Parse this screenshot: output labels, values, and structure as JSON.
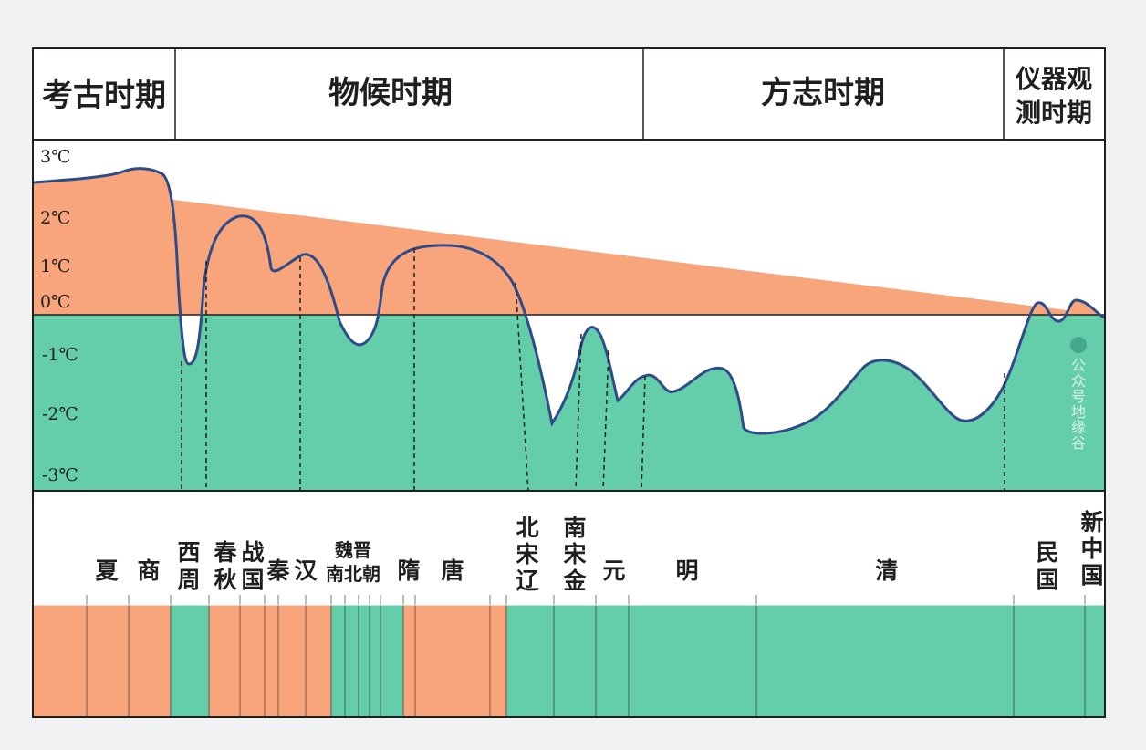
{
  "periods": [
    {
      "label": "考古时期"
    },
    {
      "label": "物候时期"
    },
    {
      "label": "方志时期"
    },
    {
      "label_lines": [
        "仪器观",
        "测时期"
      ]
    }
  ],
  "y_axis": {
    "ticks": [
      "3℃",
      "2℃",
      "1℃",
      "0℃",
      "-1℃",
      "-2℃",
      "-3℃"
    ]
  },
  "dynasties": [
    {
      "lines": [
        "夏"
      ]
    },
    {
      "lines": [
        "商"
      ]
    },
    {
      "lines": [
        "西",
        "周"
      ]
    },
    {
      "lines": [
        "春",
        "秋"
      ]
    },
    {
      "lines": [
        "战",
        "国"
      ]
    },
    {
      "lines": [
        "秦"
      ]
    },
    {
      "lines": [
        "汉"
      ]
    },
    {
      "lines": [
        "魏晋",
        "南北朝"
      ]
    },
    {
      "lines": [
        "隋"
      ]
    },
    {
      "lines": [
        "唐"
      ]
    },
    {
      "lines": [
        "北",
        "宋",
        "辽"
      ]
    },
    {
      "lines": [
        "南",
        "宋",
        "金"
      ]
    },
    {
      "lines": [
        "元"
      ]
    },
    {
      "lines": [
        "明"
      ]
    },
    {
      "lines": [
        "清"
      ]
    },
    {
      "lines": [
        "民",
        "国"
      ]
    },
    {
      "lines": [
        "新",
        "中",
        "国"
      ]
    }
  ],
  "watermark": {
    "text": "公众号地缘谷"
  },
  "colors": {
    "warm": "#f9a57c",
    "cold": "#64ceab",
    "curve": "#2f4c8a",
    "border": "#1f1f1f"
  }
}
